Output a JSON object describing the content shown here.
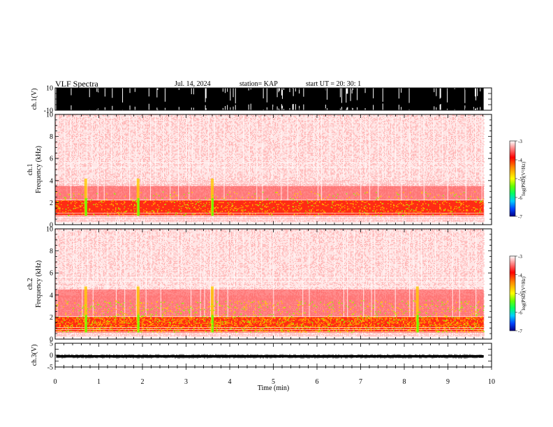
{
  "header": {
    "title": "VLF Spectra",
    "date": "Jul. 14, 2024",
    "station": "station= KAP",
    "start_ut": "start UT =   20: 30: 1"
  },
  "colors": {
    "colorbar": [
      "#000088",
      "#0044ff",
      "#00ccff",
      "#00ff66",
      "#66ff00",
      "#ffff00",
      "#ff8800",
      "#ff0000",
      "#ff8888",
      "#ffffff"
    ],
    "trace": "#000000",
    "spectrogram_base": "#ff0000"
  },
  "chart_data": [
    {
      "id": "ch1-waveform",
      "type": "line",
      "ylabel": "ch.1(V)",
      "ylim": [
        -10,
        10
      ],
      "yticks": [
        "10",
        "-10"
      ],
      "xlim": [
        0,
        10
      ],
      "trace_range": [
        -10,
        10
      ]
    },
    {
      "id": "ch1-spectrogram",
      "type": "heatmap",
      "ylabel": "ch.1\nFrequency (kHz)",
      "ylim": [
        0,
        10
      ],
      "yticks": [
        "0",
        "2",
        "4",
        "6",
        "8",
        "10"
      ],
      "xlim": [
        0,
        10
      ],
      "data_end_min": 9.82,
      "colorbar": {
        "label": "log(PSD)(V²/Hz)",
        "range": [
          -7,
          -3
        ],
        "ticks": [
          "-3",
          "-4",
          "-5",
          "-6",
          "-7"
        ]
      },
      "intense_band_khz": [
        0.8,
        2.2
      ],
      "active_band_khz": [
        2.2,
        3.5
      ],
      "strong_bursts_min": [
        0.7,
        1.9,
        3.6
      ]
    },
    {
      "id": "ch2-spectrogram",
      "type": "heatmap",
      "ylabel": "ch.2\nFrequency (kHz)",
      "ylim": [
        0,
        10
      ],
      "yticks": [
        "0",
        "2",
        "4",
        "6",
        "8",
        "10"
      ],
      "xlim": [
        0,
        10
      ],
      "data_end_min": 9.82,
      "colorbar": {
        "label": "log(PSD)(V²/Hz)",
        "range": [
          -7,
          -3
        ],
        "ticks": [
          "-3",
          "-4",
          "-5",
          "-6",
          "-7"
        ]
      },
      "intense_band_khz": [
        0.6,
        2.0
      ],
      "active_band_khz": [
        2.0,
        4.5
      ],
      "strong_bursts_min": [
        0.7,
        1.9,
        3.6,
        8.3
      ]
    },
    {
      "id": "ch3-waveform",
      "type": "line",
      "ylabel": "ch.3(V)",
      "ylim": [
        -5,
        5
      ],
      "yticks": [
        "5",
        "0",
        "-5"
      ],
      "xlim": [
        0,
        10
      ],
      "trace_range": [
        -1,
        0
      ],
      "xlabel": "Time (min)",
      "xticks": [
        "0",
        "1",
        "2",
        "3",
        "4",
        "5",
        "6",
        "7",
        "8",
        "9",
        "10"
      ]
    }
  ]
}
